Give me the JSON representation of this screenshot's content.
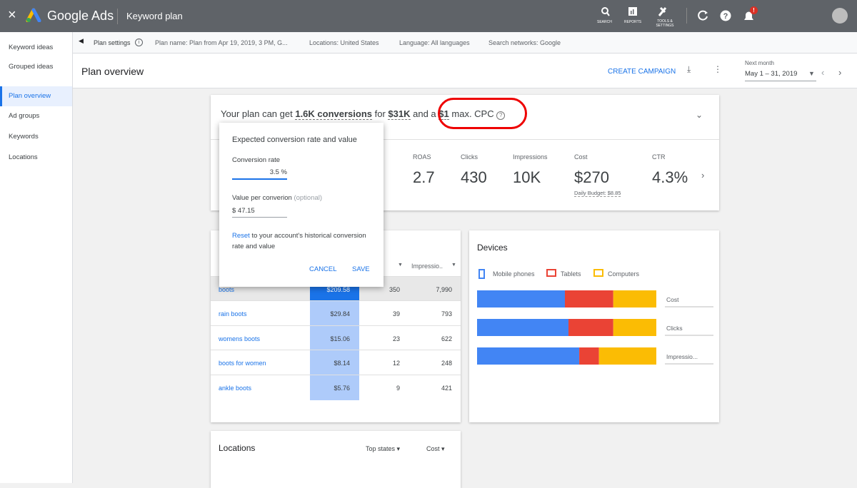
{
  "topbar": {
    "close": "×",
    "product": "Google Ads",
    "page": "Keyword plan",
    "tools": [
      "SEARCH",
      "REPORTS",
      "TOOLS & SETTINGS"
    ],
    "badge": "!"
  },
  "sidebar": {
    "items": [
      "Keyword ideas",
      "Grouped ideas",
      "Plan overview",
      "Ad groups",
      "Keywords",
      "Locations"
    ],
    "selected": 2
  },
  "settings_bar": [
    "Plan settings",
    "Plan name: Plan from Apr 19, 2019, 3 PM, G...",
    "Locations: United States",
    "Language: All languages",
    "Search networks: Google"
  ],
  "header": {
    "title": "Plan overview",
    "action": "CREATE CAMPAIGN",
    "range_label": "Next month",
    "range": "May 1 – 31, 2019"
  },
  "summary": {
    "sentence": [
      "Your plan can get",
      "1.6K conversions",
      "for",
      "$31K",
      "and a",
      "$1",
      "max. CPC"
    ],
    "metrics": [
      {
        "label": "ROAS",
        "value": "2.7"
      },
      {
        "label": "Clicks",
        "value": "430"
      },
      {
        "label": "Impressions",
        "value": "10K"
      },
      {
        "label": "Cost",
        "value": "$270"
      },
      {
        "label": "CTR",
        "value": "4.3%"
      }
    ],
    "cost_note": "Daily Budget: $8.85"
  },
  "popup": {
    "title": "Expected conversion rate and value",
    "rate_label": "Conversion rate",
    "rate": "3.5 %",
    "value_label": "Value per converion",
    "value_hint": "(optional)",
    "value": "$ 47.15",
    "reset_link": "Reset",
    "reset_text": "to your account's historical conversion rate and value",
    "cancel": "CANCEL",
    "save": "SAVE"
  },
  "keywords": {
    "column": "Impressio..",
    "rows": [
      [
        "boots",
        "$209.58",
        "350",
        "7,990"
      ],
      [
        "rain boots",
        "$29.84",
        "39",
        "793"
      ],
      [
        "womens boots",
        "$15.06",
        "23",
        "622"
      ],
      [
        "boots for women",
        "$8.14",
        "12",
        "248"
      ],
      [
        "ankle boots",
        "$5.76",
        "9",
        "421"
      ]
    ]
  },
  "devices": {
    "title": "Devices",
    "rows": [
      "Cost",
      "Clicks",
      "Impressio..."
    ],
    "series": [
      {
        "name": "Mobile phones",
        "color": "#4285f4",
        "values": [
          49,
          51,
          57
        ]
      },
      {
        "name": "Tablets",
        "color": "#ea4335",
        "values": [
          27,
          25,
          11
        ]
      },
      {
        "name": "Computers",
        "color": "#fbbc04",
        "values": [
          24,
          24,
          32
        ]
      }
    ]
  },
  "locations": {
    "title": "Locations",
    "filters": [
      "Top states",
      "Cost"
    ]
  }
}
